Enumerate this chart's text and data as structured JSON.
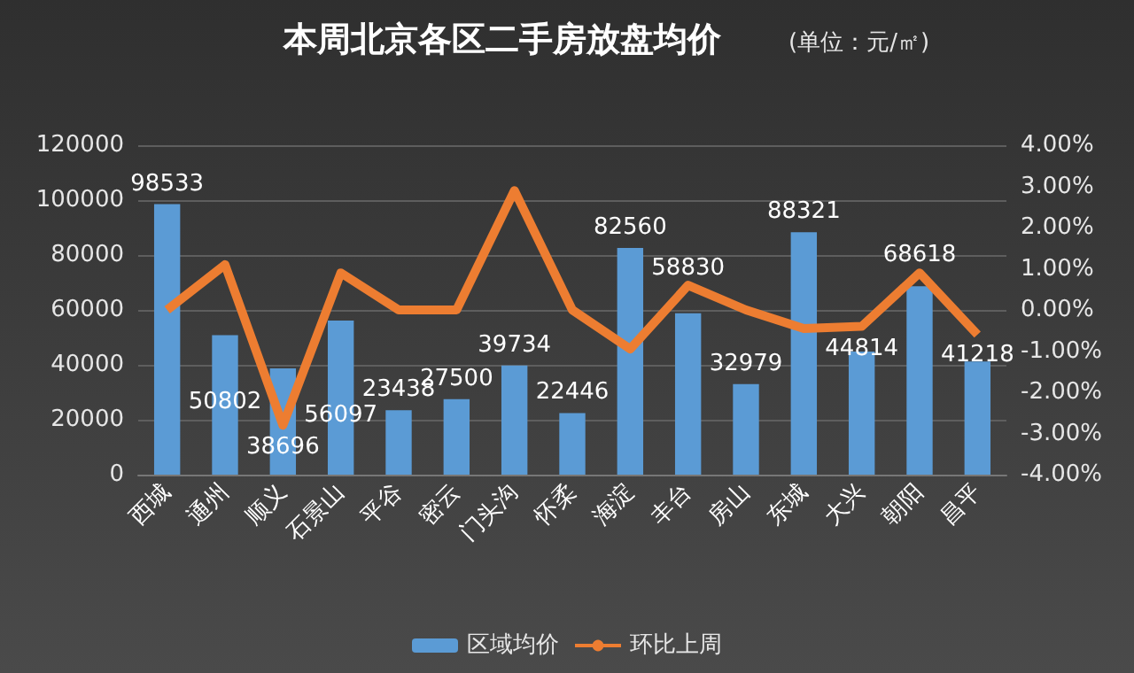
{
  "chart_data": {
    "type": "bar",
    "title": "本周北京各区二手房放盘均价",
    "subtitle": "(单位：元/㎡)",
    "categories": [
      "西城",
      "通州",
      "顺义",
      "石景山",
      "平谷",
      "密云",
      "门头沟",
      "怀柔",
      "海淀",
      "丰台",
      "房山",
      "东城",
      "大兴",
      "朝阳",
      "昌平"
    ],
    "series": [
      {
        "name": "区域均价",
        "color": "#5b9bd5",
        "values": [
          98533,
          50802,
          38696,
          56097,
          23438,
          27500,
          39734,
          22446,
          82560,
          58830,
          32979,
          88321,
          44814,
          68618,
          41218
        ],
        "value_labels": [
          "98533",
          "50802",
          "38696",
          "56097",
          "23438",
          "27500",
          "39734",
          "22446",
          "82560",
          "58830",
          "32979",
          "88321",
          "44814",
          "68618",
          "41218"
        ]
      },
      {
        "name": "环比上周",
        "type": "line",
        "axis": "y2",
        "color": "#ed7d31",
        "values": [
          0.0,
          1.1,
          -2.8,
          0.9,
          0.0,
          0.0,
          2.9,
          0.0,
          -0.95,
          0.6,
          0.0,
          -0.45,
          -0.4,
          0.9,
          -0.6
        ]
      }
    ],
    "ylim": [
      0,
      120000
    ],
    "yticks": [
      0,
      20000,
      40000,
      60000,
      80000,
      100000,
      120000
    ],
    "y2lim": [
      -4,
      4
    ],
    "y2ticks": [
      {
        "value": -4,
        "label": "-4.00%"
      },
      {
        "value": -3,
        "label": "-3.00%"
      },
      {
        "value": -2,
        "label": "-2.00%"
      },
      {
        "value": -1,
        "label": "-1.00%"
      },
      {
        "value": 0,
        "label": "0.00%"
      },
      {
        "value": 1,
        "label": "1.00%"
      },
      {
        "value": 2,
        "label": "2.00%"
      },
      {
        "value": 3,
        "label": "3.00%"
      },
      {
        "value": 4,
        "label": "4.00%"
      }
    ],
    "grid": "y",
    "legend": "bottom",
    "marker": "none"
  }
}
